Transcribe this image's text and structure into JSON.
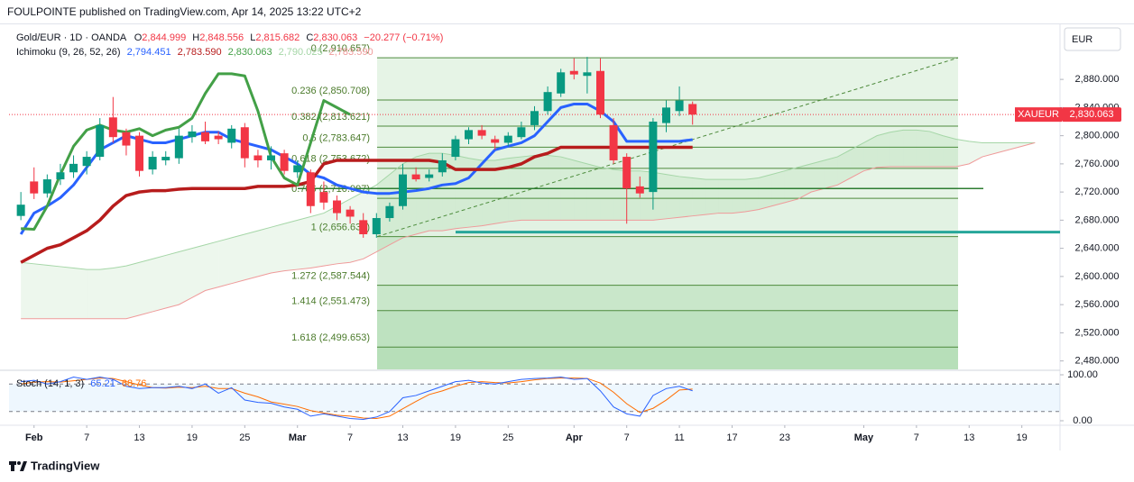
{
  "chart_data": {
    "type": "candlestick",
    "title": "FOULPOINTE published on TradingView.com, Apr 14, 2025 13:22 UTC+2",
    "legend": {
      "symbol": "Gold/EUR · 1D · OANDA",
      "o_label": "O",
      "o": "2,844.999",
      "h_label": "H",
      "h": "2,848.556",
      "l_label": "L",
      "l": "2,815.682",
      "c_label": "C",
      "c": "2,830.063",
      "change": "−20.277 (−0.71%)",
      "indicator": "Ichimoku (9, 26, 52, 26)",
      "indicator_values": [
        "2,794.451",
        "2,783.590",
        "2,830.063",
        "2,790.025",
        "2,783.590"
      ]
    },
    "currency": "EUR",
    "symbol_tag": "XAUEUR",
    "last_price": 2830.063,
    "last_price_label": "2,830.063",
    "up_color": "#089981",
    "down_color": "#f23645",
    "xlim": [
      -0.9,
      78.9
    ],
    "xticks": [
      {
        "value": 1,
        "label": "Feb"
      },
      {
        "value": 5,
        "label": "7"
      },
      {
        "value": 9,
        "label": "13"
      },
      {
        "value": 13,
        "label": "19"
      },
      {
        "value": 17,
        "label": "25"
      },
      {
        "value": 21,
        "label": "Mar"
      },
      {
        "value": 25,
        "label": "7"
      },
      {
        "value": 29,
        "label": "13"
      },
      {
        "value": 33,
        "label": "19"
      },
      {
        "value": 37,
        "label": "25"
      },
      {
        "value": 42,
        "label": "Apr"
      },
      {
        "value": 46,
        "label": "7"
      },
      {
        "value": 50,
        "label": "11"
      },
      {
        "value": 54,
        "label": "17"
      },
      {
        "value": 58,
        "label": "23"
      },
      {
        "value": 64,
        "label": "May"
      },
      {
        "value": 68,
        "label": "7"
      },
      {
        "value": 72,
        "label": "13"
      },
      {
        "value": 76,
        "label": "19"
      }
    ],
    "ylim": [
      2468,
      2948
    ],
    "yticks": [
      {
        "value": 2880,
        "label": "2,880.000"
      },
      {
        "value": 2840,
        "label": "2,840.000"
      },
      {
        "value": 2800,
        "label": "2,800.000"
      },
      {
        "value": 2760,
        "label": "2,760.000"
      },
      {
        "value": 2720,
        "label": "2,720.000"
      },
      {
        "value": 2680,
        "label": "2,680.000"
      },
      {
        "value": 2640,
        "label": "2,640.000"
      },
      {
        "value": 2600,
        "label": "2,600.000"
      },
      {
        "value": 2560,
        "label": "2,560.000"
      },
      {
        "value": 2520,
        "label": "2,520.000"
      },
      {
        "value": 2480,
        "label": "2,480.000"
      }
    ],
    "open": [
      2686,
      2735,
      2718,
      2738,
      2748,
      2757,
      2770,
      2826,
      2805,
      2800,
      2752,
      2765,
      2768,
      2798,
      2805,
      2800,
      2790,
      2812,
      2772,
      2765,
      2775,
      2748,
      2748,
      2720,
      2708,
      2695,
      2680,
      2660,
      2683,
      2700,
      2745,
      2740,
      2748,
      2770,
      2795,
      2808,
      2795,
      2790,
      2798,
      2815,
      2835,
      2860,
      2892,
      2885,
      2892,
      2815,
      2770,
      2728,
      2720,
      2818,
      2835,
      2844.999
    ],
    "high": [
      2720,
      2755,
      2745,
      2760,
      2772,
      2778,
      2825,
      2855,
      2810,
      2805,
      2778,
      2778,
      2810,
      2815,
      2820,
      2806,
      2815,
      2818,
      2780,
      2785,
      2780,
      2765,
      2752,
      2735,
      2715,
      2700,
      2690,
      2690,
      2705,
      2760,
      2755,
      2752,
      2775,
      2800,
      2812,
      2815,
      2800,
      2805,
      2820,
      2842,
      2870,
      2895,
      2910,
      2912,
      2910,
      2825,
      2775,
      2742,
      2825,
      2850,
      2870,
      2848.556
    ],
    "low": [
      2680,
      2710,
      2712,
      2730,
      2740,
      2745,
      2765,
      2790,
      2772,
      2742,
      2745,
      2758,
      2760,
      2790,
      2788,
      2788,
      2782,
      2755,
      2755,
      2752,
      2745,
      2740,
      2690,
      2695,
      2680,
      2675,
      2655,
      2655,
      2678,
      2695,
      2735,
      2735,
      2742,
      2765,
      2788,
      2795,
      2780,
      2785,
      2795,
      2808,
      2830,
      2855,
      2880,
      2860,
      2825,
      2760,
      2675,
      2712,
      2695,
      2805,
      2828,
      2815.682
    ],
    "close": [
      2702,
      2718,
      2738,
      2748,
      2760,
      2770,
      2815,
      2798,
      2786,
      2750,
      2770,
      2770,
      2800,
      2806,
      2792,
      2795,
      2810,
      2768,
      2765,
      2772,
      2750,
      2758,
      2700,
      2705,
      2690,
      2685,
      2660,
      2683,
      2700,
      2745,
      2738,
      2745,
      2765,
      2795,
      2808,
      2800,
      2790,
      2800,
      2812,
      2835,
      2862,
      2890,
      2887,
      2890,
      2830,
      2765,
      2725,
      2718,
      2820,
      2840,
      2850,
      2830.063
    ],
    "series": [
      {
        "name": "Conversion Line",
        "color": "#2962ff",
        "width": 3,
        "values": [
          2660,
          2690,
          2700,
          2712,
          2730,
          2755,
          2780,
          2790,
          2800,
          2795,
          2790,
          2790,
          2795,
          2800,
          2805,
          2805,
          2795,
          2790,
          2785,
          2780,
          2770,
          2760,
          2745,
          2740,
          2730,
          2725,
          2720,
          2718,
          2718,
          2720,
          2722,
          2725,
          2730,
          2732,
          2740,
          2760,
          2780,
          2785,
          2790,
          2800,
          2820,
          2840,
          2845,
          2845,
          2835,
          2820,
          2792,
          2792,
          2792,
          2792,
          2792,
          2794.451
        ]
      },
      {
        "name": "Base Line",
        "color": "#b71c1c",
        "width": 3.5,
        "values": [
          2620,
          2630,
          2640,
          2645,
          2655,
          2665,
          2680,
          2700,
          2715,
          2720,
          2722,
          2722,
          2724,
          2725,
          2725,
          2725,
          2725,
          2725,
          2728,
          2728,
          2728,
          2730,
          2735,
          2760,
          2765,
          2765,
          2765,
          2765,
          2765,
          2765,
          2765,
          2765,
          2762,
          2752,
          2752,
          2752,
          2752,
          2755,
          2760,
          2770,
          2775,
          2783.59,
          2783.59,
          2783.59,
          2783.59,
          2783.59,
          2783.59,
          2783.59,
          2783.59,
          2783.59,
          2783.59,
          2783.59
        ]
      },
      {
        "name": "Lagging Span",
        "color": "#43a047",
        "width": 3,
        "values": [
          2668,
          2667,
          2700,
          2745,
          2785,
          2808,
          2815,
          2808,
          2805,
          2810,
          2800,
          2808,
          2812,
          2825,
          2860,
          2888,
          2888,
          2885,
          2835,
          2770,
          2740,
          2730,
          2790,
          2850,
          2840,
          2830.063,
          null,
          null,
          null,
          null,
          null,
          null,
          null,
          null,
          null,
          null,
          null,
          null,
          null,
          null,
          null,
          null,
          null,
          null,
          null,
          null,
          null,
          null,
          null,
          null,
          null,
          null
        ]
      }
    ],
    "cloud": {
      "span_a": {
        "color": "#a5d6a7",
        "values": [
          2620,
          2618,
          2616,
          2614,
          2612,
          2610,
          2610,
          2612,
          2615,
          2620,
          2625,
          2630,
          2635,
          2640,
          2645,
          2650,
          2655,
          2660,
          2665,
          2670,
          2675,
          2680,
          2685,
          2690,
          2700,
          2710,
          2720,
          2730,
          2745,
          2760,
          2770,
          2775,
          2775,
          2772,
          2768,
          2765,
          2765,
          2768,
          2770,
          2772,
          2772,
          2770,
          2765,
          2760,
          2755,
          2752,
          2750,
          2750,
          2748,
          2745,
          2742,
          2740,
          2738,
          2738,
          2738,
          2738,
          2740,
          2745,
          2750,
          2755,
          2760,
          2765,
          2770,
          2780,
          2790,
          2800,
          2805,
          2808,
          2808,
          2806,
          2800,
          2795,
          2792,
          2790,
          2790,
          2790,
          2790,
          2790
        ]
      },
      "span_b": {
        "color": "#ef9a9a",
        "values": [
          2540,
          2540,
          2540,
          2540,
          2540,
          2540,
          2540,
          2540,
          2540,
          2545,
          2550,
          2555,
          2560,
          2570,
          2580,
          2585,
          2590,
          2595,
          2600,
          2605,
          2608,
          2610,
          2612,
          2615,
          2618,
          2620,
          2625,
          2635,
          2645,
          2655,
          2660,
          2665,
          2665,
          2668,
          2670,
          2672,
          2675,
          2678,
          2680,
          2680,
          2680,
          2680,
          2680,
          2680,
          2680,
          2680,
          2680,
          2680,
          2680,
          2682,
          2684,
          2686,
          2688,
          2690,
          2690,
          2692,
          2695,
          2700,
          2705,
          2710,
          2720,
          2725,
          2730,
          2740,
          2750,
          2755,
          2756,
          2756,
          2756,
          2756,
          2756,
          2756,
          2760,
          2770,
          2775,
          2780,
          2785,
          2790
        ]
      }
    },
    "fib": {
      "levels": [
        2910.657,
        2850.708,
        2813.621,
        2783.647,
        2753.672,
        2710.997,
        2656.636,
        2587.544,
        2551.473,
        2499.653
      ],
      "labels": [
        "0 (2,910.657)",
        "0.236 (2,850.708)",
        "0.382 (2,813.621)",
        "0.5 (2,783.647)",
        "0.618 (2,753.672)",
        "0.786 (2,710.997)",
        "1 (2,656.636)",
        "1.272 (2,587.544)",
        "1.414 (2,551.473)",
        "1.618 (2,499.653)"
      ]
    },
    "horizontal_lines": [
      {
        "value": 2663,
        "color": "#26a69a"
      },
      {
        "value": 2725,
        "color": "#2e7d32"
      }
    ],
    "stoch": {
      "label": "Stoch (14, 1, 3)",
      "k_label": "65.21",
      "d_label": "68.76",
      "ylim": [
        0,
        100
      ],
      "yticks": [
        {
          "value": 100,
          "label": "100.00"
        },
        {
          "value": 0,
          "label": "0.00"
        }
      ],
      "bands": [
        80,
        20
      ],
      "k": {
        "color": "#2962ff",
        "values": [
          85,
          88,
          80,
          85,
          95,
          90,
          95,
          90,
          75,
          70,
          72,
          72,
          75,
          70,
          80,
          60,
          72,
          45,
          40,
          38,
          30,
          25,
          10,
          15,
          10,
          5,
          3,
          8,
          20,
          50,
          55,
          65,
          75,
          85,
          88,
          82,
          80,
          85,
          90,
          92,
          93,
          95,
          90,
          92,
          65,
          30,
          15,
          10,
          55,
          70,
          75,
          65.21
        ]
      },
      "d": {
        "color": "#ff6d00",
        "values": [
          80,
          84,
          85,
          84,
          87,
          90,
          93,
          92,
          85,
          78,
          72,
          71,
          73,
          72,
          75,
          70,
          70,
          60,
          52,
          41,
          36,
          31,
          22,
          17,
          12,
          10,
          6,
          5,
          10,
          26,
          42,
          57,
          65,
          75,
          83,
          85,
          83,
          82,
          85,
          89,
          92,
          93,
          93,
          92,
          82,
          62,
          37,
          18,
          27,
          45,
          67,
          68.76
        ]
      }
    },
    "brand": "TradingView"
  }
}
